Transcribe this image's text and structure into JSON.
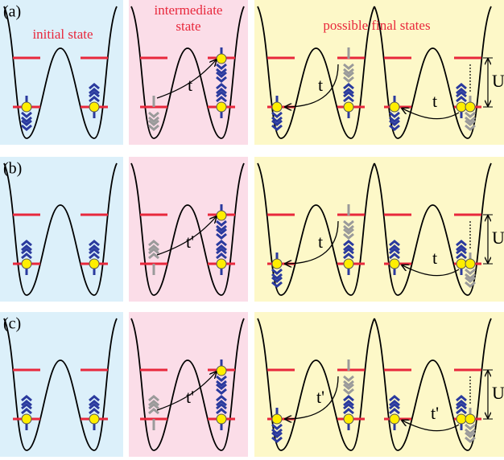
{
  "headers": {
    "initial": "initial state",
    "intermediate": [
      "intermediate",
      "state"
    ],
    "final": "possible final states"
  },
  "rows": [
    {
      "label": "(a)",
      "hops": [
        "t",
        "t",
        "t"
      ],
      "U": "U"
    },
    {
      "label": "(b)",
      "hops": [
        "t'",
        "t",
        "t"
      ],
      "U": "U"
    },
    {
      "label": "(c)",
      "hops": [
        "t'",
        "t'",
        "t'"
      ],
      "U": "U"
    }
  ]
}
